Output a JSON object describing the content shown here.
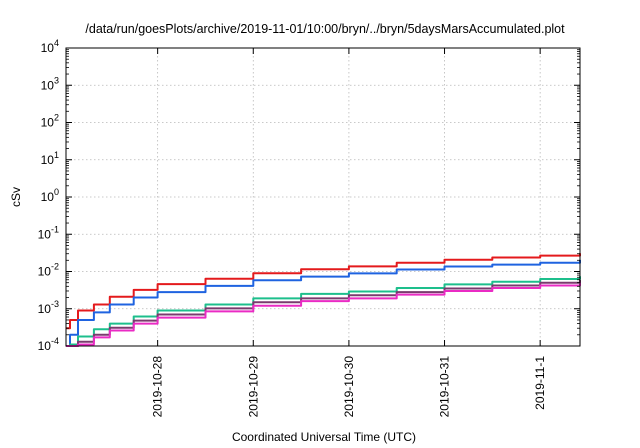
{
  "chart_data": {
    "type": "line",
    "title": "/data/run/goesPlots/archive/2019-11-01/10:00/bryn/../bryn/5daysMarsAccumulated.plot",
    "xlabel": "Coordinated Universal Time (UTC)",
    "ylabel": "cSv",
    "y_scale": "log",
    "ylim": [
      0.0001,
      10000
    ],
    "xlim": [
      "2019-10-27 01:00",
      "2019-11-01 10:00"
    ],
    "grid": true,
    "x_ticks": [
      "2019-10-28",
      "2019-10-29",
      "2019-10-30",
      "2019-10-31",
      "2019-11-1"
    ],
    "y_ticks": [
      {
        "base": "10",
        "exp": "-4"
      },
      {
        "base": "10",
        "exp": "-3"
      },
      {
        "base": "10",
        "exp": "-2"
      },
      {
        "base": "10",
        "exp": "-1"
      },
      {
        "base": "10",
        "exp": "0"
      },
      {
        "base": "10",
        "exp": "1"
      },
      {
        "base": "10",
        "exp": "2"
      },
      {
        "base": "10",
        "exp": "3"
      },
      {
        "base": "10",
        "exp": "4"
      }
    ],
    "x": [
      "2019-10-27 01:00",
      "2019-10-27 02:00",
      "2019-10-27 04:00",
      "2019-10-27 08:00",
      "2019-10-27 12:00",
      "2019-10-27 18:00",
      "2019-10-28 00:00",
      "2019-10-28 12:00",
      "2019-10-29 00:00",
      "2019-10-29 12:00",
      "2019-10-30 00:00",
      "2019-10-30 12:00",
      "2019-10-31 00:00",
      "2019-10-31 12:00",
      "2019-11-01 00:00",
      "2019-11-01 10:00"
    ],
    "series": [
      {
        "color": "#e41a1c",
        "values": [
          0.0003,
          0.0005,
          0.0009,
          0.0013,
          0.0021,
          0.0032,
          0.0046,
          0.0064,
          0.009,
          0.0115,
          0.0137,
          0.0172,
          0.0208,
          0.0238,
          0.0268,
          0.031
        ]
      },
      {
        "color": "#1f63e0",
        "values": [
          8e-05,
          0.0002,
          0.0005,
          0.0008,
          0.0013,
          0.002,
          0.0028,
          0.0041,
          0.0058,
          0.0073,
          0.0089,
          0.0113,
          0.0136,
          0.0153,
          0.0172,
          0.0205
        ]
      },
      {
        "color": "#1dbf8c",
        "values": [
          6e-05,
          0.00011,
          0.00018,
          0.00028,
          0.0004,
          0.00062,
          0.0009,
          0.0013,
          0.0019,
          0.0025,
          0.0029,
          0.0036,
          0.0045,
          0.0053,
          0.0063,
          0.0075
        ]
      },
      {
        "color": "#7a3a6e",
        "values": [
          5e-05,
          8e-05,
          0.00013,
          0.0002,
          0.00031,
          0.00048,
          0.0007,
          0.00102,
          0.0015,
          0.0019,
          0.0023,
          0.0028,
          0.0035,
          0.0042,
          0.005,
          0.0059
        ]
      },
      {
        "color": "#ea2bc4",
        "values": [
          4e-05,
          7e-05,
          0.00011,
          0.00017,
          0.00026,
          0.0004,
          0.00058,
          0.00085,
          0.0012,
          0.0016,
          0.0019,
          0.0024,
          0.003,
          0.0036,
          0.0042,
          0.005
        ]
      }
    ]
  }
}
